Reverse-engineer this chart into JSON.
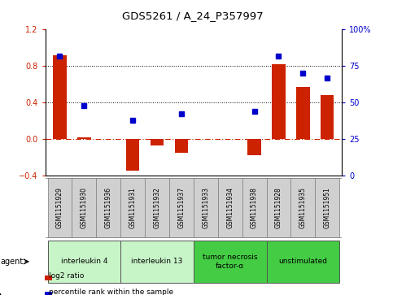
{
  "title": "GDS5261 / A_24_P357997",
  "samples": [
    "GSM1151929",
    "GSM1151930",
    "GSM1151936",
    "GSM1151931",
    "GSM1151932",
    "GSM1151937",
    "GSM1151933",
    "GSM1151934",
    "GSM1151938",
    "GSM1151928",
    "GSM1151935",
    "GSM1151951"
  ],
  "log2_ratio": [
    0.92,
    0.02,
    0.0,
    -0.35,
    -0.07,
    -0.15,
    0.0,
    0.0,
    -0.18,
    0.82,
    0.57,
    0.48
  ],
  "percentile": [
    82,
    48,
    null,
    38,
    null,
    42,
    null,
    null,
    44,
    82,
    70,
    67
  ],
  "groups": [
    {
      "label": "interleukin 4",
      "indices": [
        0,
        1,
        2
      ],
      "color": "#c8f5c8"
    },
    {
      "label": "interleukin 13",
      "indices": [
        3,
        4,
        5
      ],
      "color": "#c8f5c8"
    },
    {
      "label": "tumor necrosis\nfactor-α",
      "indices": [
        6,
        7,
        8
      ],
      "color": "#44cc44"
    },
    {
      "label": "unstimulated",
      "indices": [
        9,
        10,
        11
      ],
      "color": "#44cc44"
    }
  ],
  "ylim_left": [
    -0.4,
    1.2
  ],
  "ylim_right": [
    0,
    100
  ],
  "yticks_left": [
    -0.4,
    0.0,
    0.4,
    0.8,
    1.2
  ],
  "yticks_right": [
    0,
    25,
    50,
    75,
    100
  ],
  "ytick_labels_right": [
    "0",
    "25",
    "50",
    "75",
    "100%"
  ],
  "hlines": [
    0.4,
    0.8
  ],
  "hline_zero_color": "#cc2200",
  "bar_color": "#cc2200",
  "dot_color": "#0000cc",
  "bar_width": 0.55,
  "sample_box_color": "#d0d0d0",
  "background_color": "#ffffff",
  "legend_items": [
    {
      "label": "log2 ratio",
      "color": "#cc2200"
    },
    {
      "label": "percentile rank within the sample",
      "color": "#0000cc"
    }
  ],
  "agent_label": "agent"
}
